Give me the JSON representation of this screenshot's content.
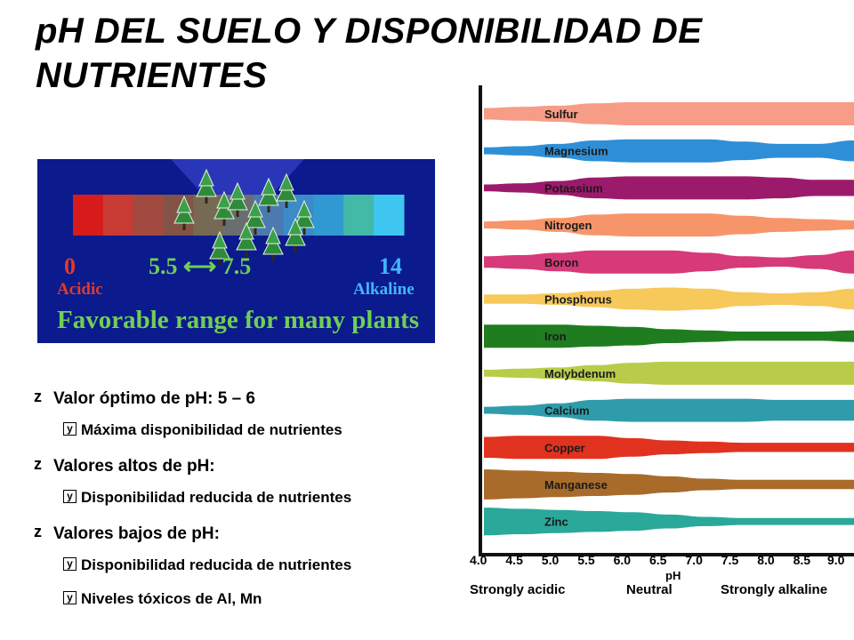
{
  "title": "pH DEL SUELO Y DISPONIBILIDAD DE NUTRIENTES",
  "ph_scale": {
    "low_value": "0",
    "low_label": "Acidic",
    "range_low": "5.5",
    "range_arrow": "⟷",
    "range_high": "7.5",
    "high_value": "14",
    "high_label": "Alkaline",
    "caption": "Favorable range for many plants",
    "colors": [
      "#d71a1a",
      "#c83b35",
      "#a24a3f",
      "#835348",
      "#776a55",
      "#6b6e70",
      "#4c79b0",
      "#3a8bc8",
      "#3199d2",
      "#43b9a8",
      "#3fc6f0"
    ]
  },
  "bullets": [
    {
      "level": 1,
      "text": "Valor óptimo de pH: 5 – 6"
    },
    {
      "level": 2,
      "text": "Máxima disponibilidad de nutrientes"
    },
    {
      "level": 1,
      "text": "Valores altos de pH:"
    },
    {
      "level": 2,
      "text": "Disponibilidad reducida de nutrientes"
    },
    {
      "level": 1,
      "text": "Valores bajos de pH:"
    },
    {
      "level": 2,
      "text": "Disponibilidad reducida de nutrientes"
    },
    {
      "level": 2,
      "text": "Niveles tóxicos de Al, Mn"
    }
  ],
  "bullet_marks": {
    "level1": "z",
    "level2": "y"
  },
  "nutrient_chart": {
    "x_ticks": [
      "4.0",
      "4.5",
      "5.0",
      "5.5",
      "6.0",
      "6.5",
      "7.0",
      "7.5",
      "8.0",
      "8.5",
      "9.0"
    ],
    "x_label": "pH",
    "zones": [
      "Strongly acidic",
      "Neutral",
      "Strongly alkaline"
    ],
    "nutrients": [
      {
        "name": "Sulfur",
        "color": "#f79c86",
        "widths": [
          0.5,
          0.6,
          0.7,
          0.9,
          1.0,
          1.0,
          1.0,
          1.0,
          1.0,
          1.0,
          1.0
        ]
      },
      {
        "name": "Magnesium",
        "color": "#2e8fd6",
        "widths": [
          0.3,
          0.4,
          0.6,
          0.9,
          1.0,
          1.0,
          1.0,
          0.8,
          0.6,
          0.6,
          0.9
        ]
      },
      {
        "name": "Potassium",
        "color": "#9c1a6c",
        "widths": [
          0.3,
          0.4,
          0.6,
          0.9,
          1.0,
          1.0,
          1.0,
          1.0,
          0.9,
          0.7,
          0.7
        ]
      },
      {
        "name": "Nitrogen",
        "color": "#f7956a",
        "widths": [
          0.3,
          0.4,
          0.6,
          0.9,
          1.0,
          1.0,
          1.0,
          0.8,
          0.6,
          0.5,
          0.4
        ]
      },
      {
        "name": "Boron",
        "color": "#d63a78",
        "widths": [
          0.5,
          0.6,
          0.8,
          1.0,
          1.0,
          1.0,
          0.8,
          0.5,
          0.4,
          0.6,
          1.0
        ]
      },
      {
        "name": "Phosphorus",
        "color": "#f7c85a",
        "widths": [
          0.4,
          0.4,
          0.5,
          0.7,
          0.9,
          1.0,
          0.9,
          0.6,
          0.5,
          0.6,
          0.9
        ]
      },
      {
        "name": "Iron",
        "color": "#1f7d1f",
        "widths": [
          1.0,
          1.0,
          1.0,
          0.9,
          0.8,
          0.6,
          0.5,
          0.4,
          0.4,
          0.4,
          0.5
        ]
      },
      {
        "name": "Molybdenum",
        "color": "#b9cc4a",
        "widths": [
          0.3,
          0.4,
          0.5,
          0.7,
          0.9,
          1.0,
          1.0,
          1.0,
          1.0,
          1.0,
          1.0
        ]
      },
      {
        "name": "Calcium",
        "color": "#2f9cac",
        "widths": [
          0.3,
          0.4,
          0.6,
          0.9,
          1.0,
          1.0,
          1.0,
          1.0,
          0.9,
          0.9,
          0.9
        ]
      },
      {
        "name": "Copper",
        "color": "#e0321e",
        "widths": [
          0.9,
          1.0,
          1.0,
          1.0,
          0.8,
          0.6,
          0.5,
          0.4,
          0.4,
          0.4,
          0.4
        ]
      },
      {
        "name": "Manganese",
        "color": "#a86b2a",
        "widths": [
          1.3,
          1.2,
          1.1,
          1.0,
          0.9,
          0.7,
          0.5,
          0.4,
          0.4,
          0.4,
          0.4
        ]
      },
      {
        "name": "Zinc",
        "color": "#2aa89a",
        "widths": [
          1.2,
          1.1,
          1.0,
          0.9,
          0.8,
          0.6,
          0.4,
          0.3,
          0.3,
          0.3,
          0.3
        ]
      }
    ]
  }
}
